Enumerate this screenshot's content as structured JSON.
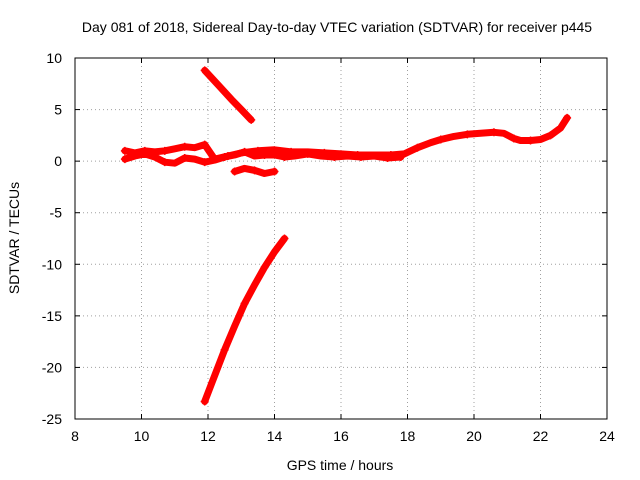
{
  "chart_data": {
    "type": "scatter",
    "title": "Day 081 of 2018, Sidereal Day-to-day VTEC variation (SDTVAR) for receiver p445",
    "xlabel": "GPS time / hours",
    "ylabel": "SDTVAR / TECUs",
    "xlim": [
      8,
      24
    ],
    "ylim": [
      -25,
      10
    ],
    "xticks": [
      "8",
      "10",
      "12",
      "14",
      "16",
      "18",
      "20",
      "22",
      "24"
    ],
    "yticks": [
      "10",
      "5",
      "0",
      "-5",
      "-10",
      "-15",
      "-20",
      "-25"
    ],
    "grid": true,
    "marker": "plus",
    "color": "#ff0000",
    "series": [
      {
        "x": [
          9.5,
          9.8,
          10.1,
          10.4,
          10.7,
          11.0,
          11.3,
          11.6,
          11.9,
          12.2,
          12.6,
          13.0,
          13.5,
          14.0,
          14.5,
          15.0,
          15.5,
          16.0,
          16.5,
          17.0,
          17.5,
          17.9,
          18.3,
          18.7,
          19.0,
          19.4,
          19.8,
          20.2,
          20.6,
          20.9,
          21.2,
          21.4,
          21.7,
          22.0,
          22.3,
          22.6,
          22.8
        ],
        "y": [
          1.0,
          0.8,
          1.0,
          0.9,
          1.0,
          1.2,
          1.4,
          1.3,
          1.6,
          0.2,
          0.5,
          0.8,
          1.0,
          1.1,
          0.9,
          0.9,
          0.8,
          0.7,
          0.6,
          0.6,
          0.6,
          0.7,
          1.3,
          1.8,
          2.1,
          2.4,
          2.6,
          2.7,
          2.8,
          2.7,
          2.2,
          2.0,
          2.0,
          2.1,
          2.5,
          3.2,
          4.2
        ]
      },
      {
        "x": [
          9.5,
          9.8,
          10.1,
          10.4,
          10.7,
          11.0,
          11.3,
          11.6,
          11.9,
          12.2,
          12.5,
          12.8,
          13.1,
          13.4,
          13.7,
          14.0,
          14.3,
          14.6,
          15.0,
          15.4,
          15.8,
          16.2,
          16.6,
          17.0,
          17.4,
          17.8
        ],
        "y": [
          0.2,
          0.5,
          0.7,
          0.4,
          -0.1,
          -0.2,
          0.3,
          0.2,
          -0.1,
          0.1,
          0.4,
          0.6,
          0.9,
          0.5,
          0.6,
          0.6,
          0.4,
          0.5,
          0.7,
          0.5,
          0.4,
          0.5,
          0.4,
          0.5,
          0.3,
          0.4
        ]
      },
      {
        "x": [
          12.8,
          13.1,
          13.4,
          13.7,
          14.0
        ],
        "y": [
          -1.0,
          -0.7,
          -0.9,
          -1.2,
          -1.0
        ]
      },
      {
        "x": [
          11.9,
          12.3,
          12.7,
          13.0,
          13.3
        ],
        "y": [
          8.8,
          7.4,
          6.0,
          5.0,
          4.0
        ]
      },
      {
        "x": [
          11.9,
          12.2,
          12.5,
          12.8,
          13.1,
          13.4,
          13.7,
          14.0,
          14.3
        ],
        "y": [
          -23.3,
          -20.8,
          -18.3,
          -16.0,
          -13.8,
          -12.0,
          -10.3,
          -8.8,
          -7.5
        ]
      }
    ]
  }
}
